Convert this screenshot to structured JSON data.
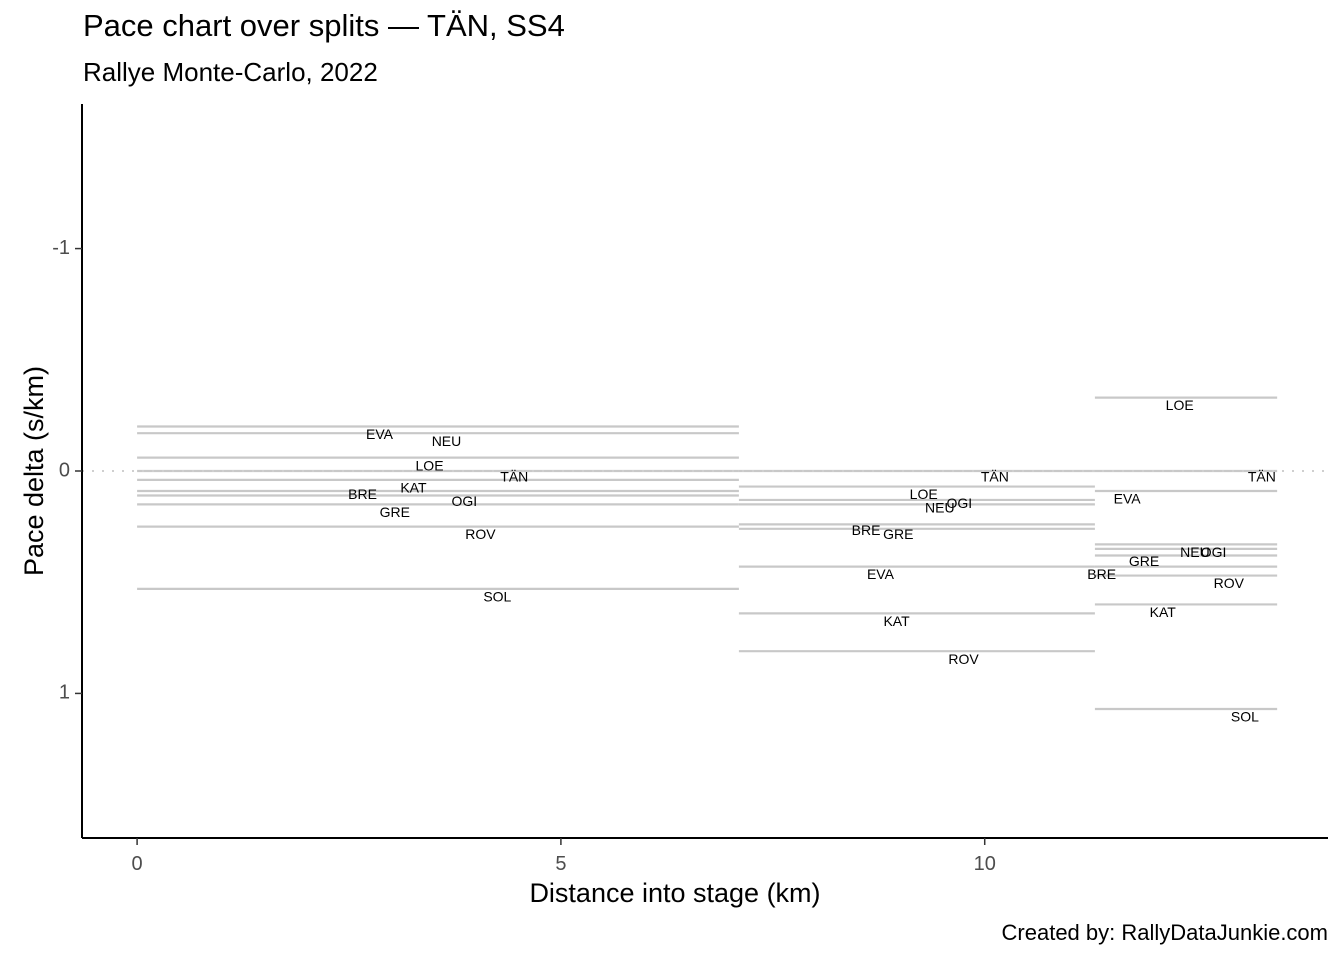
{
  "chart_data": {
    "type": "line",
    "title": "Pace chart over splits — TÄN, SS4",
    "subtitle": "Rallye Monte-Carlo, 2022",
    "caption": "Created by: RallyDataJunkie.com",
    "xlabel": "Distance into stage (km)",
    "ylabel": "Pace delta (s/km)",
    "xlim": [
      -0.65,
      14.05
    ],
    "ylim": [
      1.65,
      -1.65
    ],
    "y_reversed": true,
    "x_ticks": [
      0,
      5,
      10
    ],
    "y_ticks": [
      -1,
      0,
      1
    ],
    "reference_line": 0,
    "grid": false,
    "splits": [
      {
        "start": 0,
        "end": 7.1,
        "drivers": [
          {
            "name": "EVA",
            "pace": -0.2,
            "label_x": 2.86,
            "label_y": -0.16
          },
          {
            "name": "NEU",
            "pace": -0.17,
            "label_x": 3.65,
            "label_y": -0.13
          },
          {
            "name": "LOE",
            "pace": -0.06,
            "label_x": 3.45,
            "label_y": -0.02
          },
          {
            "name": "TÄN",
            "pace": 0,
            "label_x": 4.45,
            "label_y": 0.03
          },
          {
            "name": "KAT",
            "pace": 0.04,
            "label_x": 3.26,
            "label_y": 0.08
          },
          {
            "name": "BRE",
            "pace": 0.09,
            "label_x": 2.66,
            "label_y": 0.11
          },
          {
            "name": "OGI",
            "pace": 0.11,
            "label_x": 3.86,
            "label_y": 0.14
          },
          {
            "name": "GRE",
            "pace": 0.15,
            "label_x": 3.04,
            "label_y": 0.19
          },
          {
            "name": "ROV",
            "pace": 0.25,
            "label_x": 4.05,
            "label_y": 0.29
          },
          {
            "name": "SOL",
            "pace": 0.53,
            "label_x": 4.25,
            "label_y": 0.57
          }
        ]
      },
      {
        "start": 7.1,
        "end": 11.3,
        "drivers": [
          {
            "name": "TÄN",
            "pace": 0,
            "label_x": 10.12,
            "label_y": 0.03
          },
          {
            "name": "LOE",
            "pace": 0.07,
            "label_x": 9.28,
            "label_y": 0.11
          },
          {
            "name": "OGI",
            "pace": 0.13,
            "label_x": 9.7,
            "label_y": 0.15
          },
          {
            "name": "NEU",
            "pace": 0.15,
            "label_x": 9.47,
            "label_y": 0.17
          },
          {
            "name": "BRE",
            "pace": 0.24,
            "label_x": 8.6,
            "label_y": 0.27
          },
          {
            "name": "GRE",
            "pace": 0.26,
            "label_x": 8.98,
            "label_y": 0.29
          },
          {
            "name": "EVA",
            "pace": 0.43,
            "label_x": 8.77,
            "label_y": 0.47
          },
          {
            "name": "KAT",
            "pace": 0.64,
            "label_x": 8.96,
            "label_y": 0.68
          },
          {
            "name": "ROV",
            "pace": 0.81,
            "label_x": 9.75,
            "label_y": 0.85
          }
        ]
      },
      {
        "start": 11.3,
        "end": 13.45,
        "drivers": [
          {
            "name": "LOE",
            "pace": -0.33,
            "label_x": 12.3,
            "label_y": -0.29
          },
          {
            "name": "TÄN",
            "pace": 0,
            "label_x": 13.27,
            "label_y": 0.03
          },
          {
            "name": "EVA",
            "pace": 0.09,
            "label_x": 11.68,
            "label_y": 0.13
          },
          {
            "name": "NEU",
            "pace": 0.33,
            "label_x": 12.48,
            "label_y": 0.37
          },
          {
            "name": "OGI",
            "pace": 0.35,
            "label_x": 12.7,
            "label_y": 0.37
          },
          {
            "name": "GRE",
            "pace": 0.38,
            "label_x": 11.88,
            "label_y": 0.41
          },
          {
            "name": "BRE",
            "pace": 0.43,
            "label_x": 11.38,
            "label_y": 0.47
          },
          {
            "name": "ROV",
            "pace": 0.47,
            "label_x": 12.88,
            "label_y": 0.51
          },
          {
            "name": "KAT",
            "pace": 0.6,
            "label_x": 12.1,
            "label_y": 0.64
          },
          {
            "name": "SOL",
            "pace": 1.07,
            "label_x": 13.07,
            "label_y": 1.11
          }
        ]
      }
    ],
    "colors": {
      "segment": "#c8c8c8",
      "reference": "#cfcfcf",
      "axis": "#000000",
      "tick_label": "#4d4d4d"
    }
  }
}
